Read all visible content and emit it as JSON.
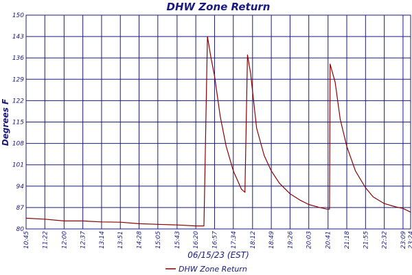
{
  "chart_data": {
    "type": "line",
    "title": "DHW Zone Return",
    "xlabel": "06/15/23 (EST)",
    "ylabel": "Degrees F",
    "ylim": [
      80,
      150
    ],
    "yticks": [
      "80",
      "87",
      "94",
      "101",
      "108",
      "115",
      "122",
      "129",
      "136",
      "143",
      "150"
    ],
    "xticks": [
      "10:45",
      "11:22",
      "12:00",
      "12:37",
      "13:14",
      "13:51",
      "14:28",
      "15:05",
      "15:43",
      "16:20",
      "16:57",
      "17:34",
      "18:12",
      "18:49",
      "19:26",
      "20:03",
      "20:41",
      "21:18",
      "21:55",
      "22:32",
      "23:09",
      "23:24"
    ],
    "grid": true,
    "legend_position": "bottom-center",
    "colors": {
      "series": "#8b0000",
      "grid": "#1a1a80",
      "text": "#1a1a80"
    },
    "series": [
      {
        "name": "DHW Zone Return",
        "points": [
          [
            "10:45",
            83.5
          ],
          [
            "11:22",
            83.2
          ],
          [
            "12:00",
            82.6
          ],
          [
            "12:37",
            82.6
          ],
          [
            "13:14",
            82.3
          ],
          [
            "13:51",
            82.2
          ],
          [
            "14:28",
            81.7
          ],
          [
            "15:05",
            81.5
          ],
          [
            "15:43",
            81.3
          ],
          [
            "16:20",
            81.0
          ],
          [
            "16:36",
            81.0
          ],
          [
            "16:43",
            143.0
          ],
          [
            "16:50",
            136.0
          ],
          [
            "16:57",
            130.0
          ],
          [
            "17:08",
            117.0
          ],
          [
            "17:20",
            107.0
          ],
          [
            "17:34",
            99.0
          ],
          [
            "17:50",
            93.0
          ],
          [
            "17:57",
            92.0
          ],
          [
            "18:02",
            137.0
          ],
          [
            "18:08",
            131.0
          ],
          [
            "18:20",
            113.0
          ],
          [
            "18:35",
            104.0
          ],
          [
            "18:49",
            99.0
          ],
          [
            "19:05",
            95.0
          ],
          [
            "19:26",
            91.5
          ],
          [
            "19:45",
            89.5
          ],
          [
            "20:03",
            88.0
          ],
          [
            "20:25",
            87.0
          ],
          [
            "20:38",
            86.5
          ],
          [
            "20:44",
            86.5
          ],
          [
            "20:45",
            134.0
          ],
          [
            "20:55",
            128.0
          ],
          [
            "21:05",
            116.0
          ],
          [
            "21:18",
            107.0
          ],
          [
            "21:35",
            99.0
          ],
          [
            "21:55",
            93.5
          ],
          [
            "22:10",
            90.5
          ],
          [
            "22:32",
            88.3
          ],
          [
            "22:55",
            87.2
          ],
          [
            "23:09",
            86.7
          ],
          [
            "23:24",
            85.5
          ]
        ]
      }
    ]
  }
}
